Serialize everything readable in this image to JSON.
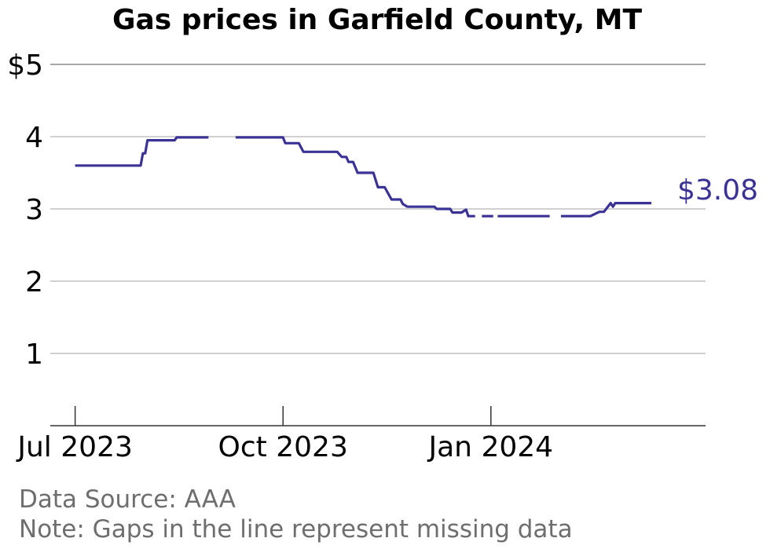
{
  "chart_data": {
    "type": "line",
    "title": "Gas prices in Garfield County, MT",
    "xlabel": "",
    "ylabel": "",
    "ylim": [
      0,
      5
    ],
    "yticks": [
      1,
      2,
      3,
      4,
      5
    ],
    "ytick_labels": [
      "1",
      "2",
      "3",
      "4",
      "$5"
    ],
    "xlim": [
      "2023-06-20",
      "2024-04-05"
    ],
    "xticks": [
      {
        "date": "2023-07-01",
        "label": "Jul 2023"
      },
      {
        "date": "2023-10-01",
        "label": "Oct 2023"
      },
      {
        "date": "2024-01-01",
        "label": "Jan 2024"
      }
    ],
    "grid": true,
    "legend": "none",
    "series": [
      {
        "color": "#3b3295",
        "segments": [
          [
            [
              "2023-07-01",
              3.6
            ],
            [
              "2023-07-30",
              3.6
            ],
            [
              "2023-07-31",
              3.77
            ],
            [
              "2023-08-01",
              3.77
            ],
            [
              "2023-08-02",
              3.95
            ],
            [
              "2023-08-14",
              3.95
            ],
            [
              "2023-08-15",
              3.99
            ],
            [
              "2023-08-29",
              3.99
            ]
          ],
          [
            [
              "2023-09-10",
              3.99
            ],
            [
              "2023-10-01",
              3.99
            ],
            [
              "2023-10-02",
              3.91
            ],
            [
              "2023-10-08",
              3.91
            ],
            [
              "2023-10-10",
              3.79
            ],
            [
              "2023-10-25",
              3.79
            ],
            [
              "2023-10-27",
              3.72
            ],
            [
              "2023-10-29",
              3.72
            ],
            [
              "2023-10-30",
              3.65
            ],
            [
              "2023-11-01",
              3.65
            ],
            [
              "2023-11-03",
              3.5
            ],
            [
              "2023-11-10",
              3.5
            ],
            [
              "2023-11-12",
              3.3
            ],
            [
              "2023-11-15",
              3.3
            ],
            [
              "2023-11-18",
              3.13
            ],
            [
              "2023-11-22",
              3.13
            ],
            [
              "2023-11-23",
              3.07
            ],
            [
              "2023-11-25",
              3.03
            ],
            [
              "2023-12-07",
              3.03
            ],
            [
              "2023-12-08",
              3.0
            ],
            [
              "2023-12-14",
              3.0
            ],
            [
              "2023-12-15",
              2.95
            ],
            [
              "2023-12-19",
              2.95
            ],
            [
              "2023-12-21",
              2.99
            ],
            [
              "2023-12-22",
              2.9
            ],
            [
              "2023-12-25",
              2.9
            ]
          ],
          [
            [
              "2023-12-28",
              2.9
            ],
            [
              "2024-01-02",
              2.9
            ]
          ],
          [
            [
              "2024-01-04",
              2.9
            ],
            [
              "2024-01-27",
              2.9
            ]
          ],
          [
            [
              "2024-02-01",
              2.9
            ],
            [
              "2024-02-14",
              2.9
            ],
            [
              "2024-02-16",
              2.93
            ],
            [
              "2024-02-18",
              2.96
            ],
            [
              "2024-02-20",
              2.96
            ],
            [
              "2024-02-23",
              3.08
            ],
            [
              "2024-02-24",
              3.03
            ],
            [
              "2024-02-25",
              3.08
            ],
            [
              "2024-03-12",
              3.08
            ]
          ]
        ],
        "end_label": "$3.08"
      }
    ],
    "source": "Data Source: AAA",
    "note": "Note: Gaps in the line represent missing data"
  }
}
